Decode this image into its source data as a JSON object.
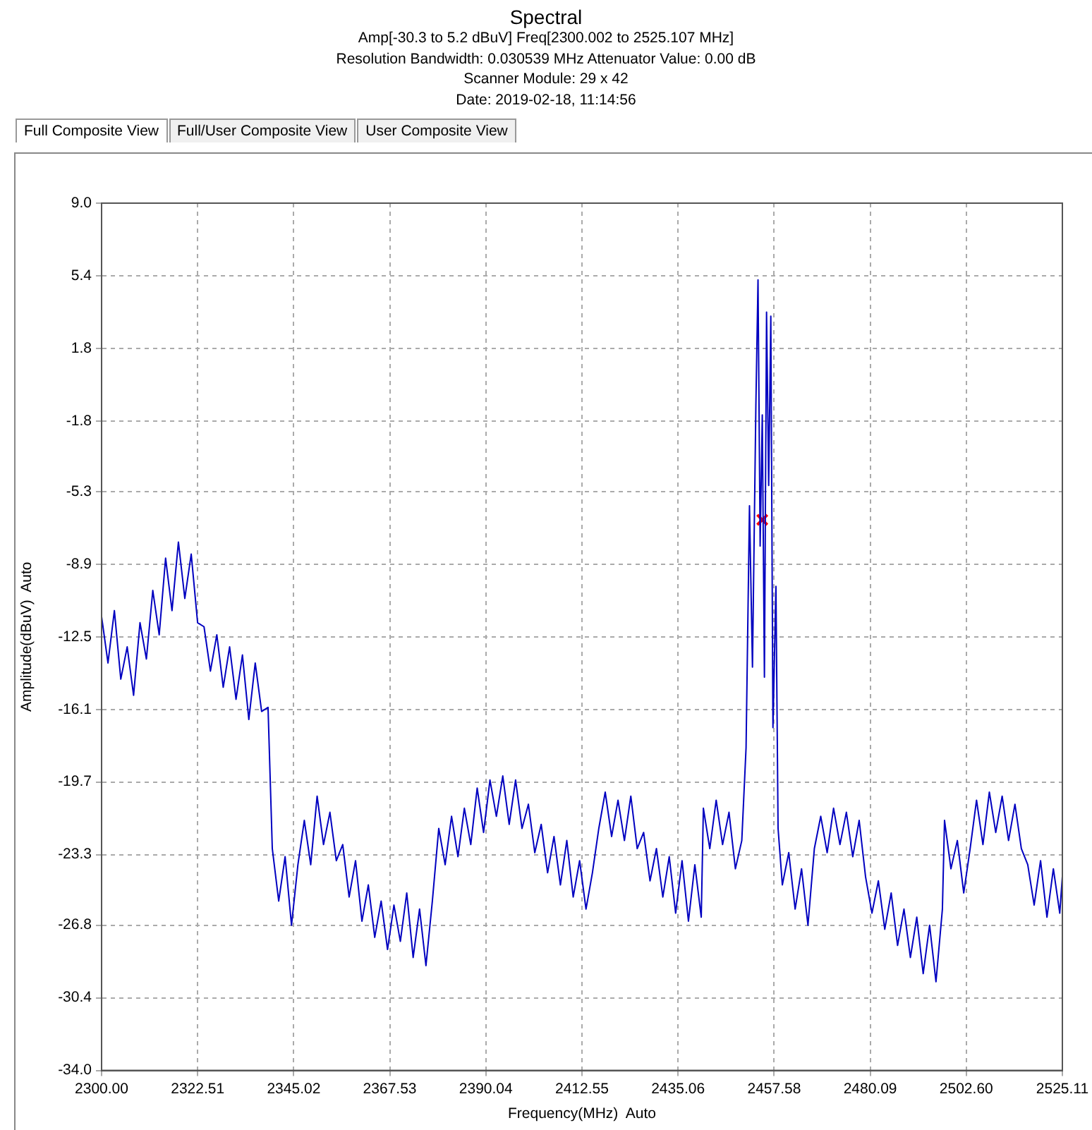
{
  "chart_data": {
    "type": "line",
    "title": "Spectral",
    "subtitle": "Amp[-30.3 to 5.2  dBuV]  Freq[2300.002 to 2525.107 MHz]\nResolution Bandwidth: 0.030539 MHz     Attenuator Value:   0.00 dB\nScanner Module: 29 x 42\nDate: 2019-02-18,  11:14:56",
    "annotations": [
      "Full Composite View",
      "Full/User Composite View",
      "User Composite View"
    ],
    "xlabel": "Frequency(MHz)  Auto",
    "ylabel": "Amplitude(dBuV)  Auto",
    "xlim": [
      2300,
      2525.11
    ],
    "xticks": [
      {
        "value": 2300,
        "label": "2300.00"
      },
      2322.51,
      2345.02,
      2367.53,
      2390.04,
      2412.55,
      2435.06,
      2457.58,
      2480.09,
      {
        "value": 2502.6,
        "label": "2502.60"
      },
      2525.11
    ],
    "ylim": [
      -34,
      9
    ],
    "yticks": [
      {
        "value": 9,
        "label": "9.0"
      },
      5.4,
      1.8,
      -1.8,
      -5.3,
      -8.9,
      -12.5,
      -16.1,
      -19.7,
      -23.3,
      -26.8,
      -30.4,
      {
        "value": -34,
        "label": "-34.0"
      }
    ],
    "grid": true,
    "legend": false,
    "series": [
      {
        "type": "line",
        "marker": "none",
        "color": "#0000c0",
        "x": [
          2300,
          2301.5,
          2303,
          2304.5,
          2306,
          2307.5,
          2309,
          2310.5,
          2312,
          2313.5,
          2315,
          2316.5,
          2318,
          2319.5,
          2321,
          2322.5,
          2324,
          2325.5,
          2327,
          2328.5,
          2330,
          2331.5,
          2333,
          2334.5,
          2336,
          2337.5,
          2339,
          2340,
          2341.5,
          2343,
          2344.5,
          2346,
          2347.5,
          2349,
          2350.5,
          2352,
          2353.5,
          2355,
          2356.5,
          2358,
          2359.5,
          2361,
          2362.5,
          2364,
          2365.5,
          2367,
          2368.5,
          2370,
          2371.5,
          2373,
          2374.5,
          2376,
          2377.5,
          2379,
          2380.5,
          2382,
          2383.5,
          2385,
          2386.5,
          2388,
          2389.5,
          2391,
          2392.5,
          2394,
          2395.5,
          2397,
          2398.5,
          2400,
          2401.5,
          2403,
          2404.5,
          2406,
          2407.5,
          2409,
          2410.5,
          2412,
          2413.5,
          2415,
          2416.5,
          2418,
          2419.5,
          2421,
          2422.5,
          2424,
          2425.5,
          2427,
          2428.5,
          2430,
          2431.5,
          2433,
          2434.5,
          2436,
          2437.5,
          2439,
          2440.5,
          2441,
          2442.5,
          2444,
          2445.5,
          2447,
          2448.5,
          2450,
          2451,
          2451.8,
          2452.5,
          2453.3,
          2453.8,
          2454.3,
          2454.8,
          2455.3,
          2455.8,
          2456.3,
          2456.8,
          2457.3,
          2458,
          2458.5,
          2459.5,
          2461,
          2462.5,
          2464,
          2465.5,
          2467,
          2468.5,
          2470,
          2471.5,
          2473,
          2474.5,
          2476,
          2477.5,
          2479,
          2480.5,
          2482,
          2483.5,
          2485,
          2486.5,
          2488,
          2489.5,
          2491,
          2492.5,
          2494,
          2495.5,
          2497,
          2497.5,
          2499,
          2500.5,
          2502,
          2503.5,
          2505,
          2506.5,
          2508,
          2509.5,
          2511,
          2512.5,
          2514,
          2515.5,
          2517,
          2518.5,
          2520,
          2521.5,
          2523,
          2524.5,
          2525.1
        ],
        "values": [
          -11.5,
          -13.8,
          -11.2,
          -14.6,
          -13.0,
          -15.4,
          -11.8,
          -13.6,
          -10.2,
          -12.4,
          -8.6,
          -11.2,
          -7.8,
          -10.6,
          -8.4,
          -11.8,
          -12.0,
          -14.2,
          -12.4,
          -15.0,
          -13.0,
          -15.6,
          -13.4,
          -16.6,
          -13.8,
          -16.2,
          -16.0,
          -23.0,
          -25.6,
          -23.4,
          -26.8,
          -23.8,
          -21.6,
          -23.8,
          -20.4,
          -22.8,
          -21.2,
          -23.6,
          -22.8,
          -25.4,
          -23.6,
          -26.6,
          -24.8,
          -27.4,
          -25.6,
          -28.0,
          -25.8,
          -27.6,
          -25.2,
          -28.4,
          -26.0,
          -28.8,
          -25.6,
          -22.0,
          -23.8,
          -21.4,
          -23.4,
          -21.0,
          -22.8,
          -20.0,
          -22.2,
          -19.6,
          -21.4,
          -19.4,
          -21.8,
          -19.6,
          -22.0,
          -20.8,
          -23.2,
          -21.8,
          -24.2,
          -22.4,
          -24.8,
          -22.6,
          -25.4,
          -23.6,
          -26.0,
          -24.2,
          -22.0,
          -20.2,
          -22.4,
          -20.6,
          -22.6,
          -20.4,
          -23.0,
          -22.2,
          -24.6,
          -23.0,
          -25.4,
          -23.4,
          -26.2,
          -23.6,
          -26.6,
          -23.8,
          -26.4,
          -21.0,
          -23.0,
          -20.6,
          -22.8,
          -21.2,
          -24.0,
          -22.6,
          -18.0,
          -6.0,
          -14.0,
          -1.0,
          5.2,
          -8.0,
          -1.5,
          -14.5,
          3.6,
          -5.0,
          3.4,
          -17.0,
          -10.0,
          -22.0,
          -24.8,
          -23.2,
          -26.0,
          -24.0,
          -26.8,
          -23.0,
          -21.4,
          -23.2,
          -21.0,
          -22.8,
          -21.2,
          -23.4,
          -21.6,
          -24.4,
          -26.2,
          -24.6,
          -27.0,
          -25.2,
          -27.8,
          -26.0,
          -28.4,
          -26.4,
          -29.2,
          -26.8,
          -29.6,
          -26.0,
          -21.6,
          -24.0,
          -22.6,
          -25.2,
          -23.0,
          -20.6,
          -22.8,
          -20.2,
          -22.2,
          -20.4,
          -22.6,
          -20.8,
          -23.0,
          -23.8,
          -25.8,
          -23.6,
          -26.4,
          -24.0,
          -26.2,
          -24.4
        ]
      },
      {
        "type": "scatter",
        "marker": "cross",
        "color": "#ff0000",
        "x": [
          2454.8
        ],
        "values": [
          -6.7
        ]
      }
    ]
  }
}
